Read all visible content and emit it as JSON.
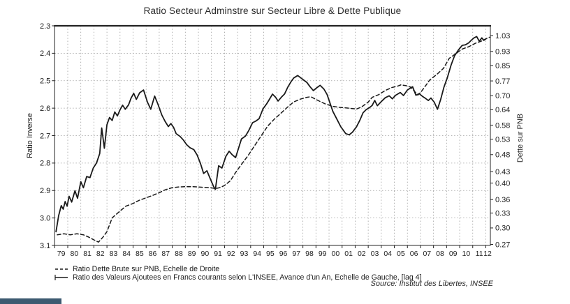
{
  "chart": {
    "title": "Ratio Secteur Adminstre sur Secteur Libre & Dette Publique",
    "left_axis_label": "Ratio Inverse",
    "right_axis_label": "Dette sur PNB",
    "legend": [
      {
        "style": "dashed",
        "label": "Ratio Dette Brute sur PNB, Echelle de Droite"
      },
      {
        "style": "solid",
        "label": "Ratio des Valeurs Ajoutees en Francs courants selon L'INSEE, Avance d'un An, Echelle de Gauche, [lag 4]"
      }
    ],
    "source": "Source: Institut des Libertes, INSEE",
    "colors": {
      "line": "#1a1a1a",
      "grid": "#9b9b9b",
      "frame": "#3a3a3a",
      "text": "#1d1d1d"
    }
  },
  "chart_data": {
    "type": "line",
    "title": "Ratio Secteur Adminstre sur Secteur Libre & Dette Publique",
    "x_range": [
      1979.0,
      2012.35
    ],
    "x_tick_labels": [
      "79",
      "80",
      "81",
      "82",
      "83",
      "84",
      "85",
      "86",
      "87",
      "88",
      "89",
      "90",
      "91",
      "92",
      "93",
      "94",
      "95",
      "96",
      "97",
      "98",
      "99",
      "00",
      "01",
      "02",
      "03",
      "04",
      "05",
      "06",
      "07",
      "08",
      "09",
      "10",
      "11",
      "12"
    ],
    "left_axis": {
      "label": "Ratio Inverse",
      "min": 2.3,
      "max": 3.1,
      "inverted": true,
      "scale": "linear",
      "ticks": [
        "2.3",
        "2.4",
        "2.5",
        "2.6",
        "2.7",
        "2.8",
        "2.9",
        "3.0",
        "3.1"
      ]
    },
    "right_axis": {
      "label": "Dette sur PNB",
      "scale": "log",
      "bottom": 0.27,
      "ticks": [
        "1.03",
        "0.93",
        "0.85",
        "0.77",
        "0.70",
        "0.64",
        "0.58",
        "0.53",
        "0.48",
        "0.43",
        "0.40",
        "0.36",
        "0.33",
        "0.30",
        "0.27"
      ]
    },
    "grid": true,
    "legend_position": "bottom-left",
    "series": [
      {
        "name": "Ratio Dette Brute sur PNB, Echelle de Droite",
        "axis": "right",
        "style": "dashed",
        "points": [
          [
            1979.2,
            0.287
          ],
          [
            1979.7,
            0.289
          ],
          [
            1980.2,
            0.287
          ],
          [
            1980.7,
            0.289
          ],
          [
            1981.2,
            0.287
          ],
          [
            1981.6,
            0.283
          ],
          [
            1982.0,
            0.278
          ],
          [
            1982.35,
            0.274
          ],
          [
            1982.7,
            0.283
          ],
          [
            1983.0,
            0.293
          ],
          [
            1983.4,
            0.32
          ],
          [
            1983.9,
            0.332
          ],
          [
            1984.45,
            0.345
          ],
          [
            1985.0,
            0.351
          ],
          [
            1985.45,
            0.358
          ],
          [
            1986.0,
            0.364
          ],
          [
            1986.45,
            0.369
          ],
          [
            1987.0,
            0.376
          ],
          [
            1987.45,
            0.383
          ],
          [
            1987.95,
            0.388
          ],
          [
            1988.45,
            0.39
          ],
          [
            1989.0,
            0.391
          ],
          [
            1989.5,
            0.391
          ],
          [
            1990.0,
            0.39
          ],
          [
            1990.5,
            0.389
          ],
          [
            1991.0,
            0.388
          ],
          [
            1991.3,
            0.386
          ],
          [
            1991.7,
            0.389
          ],
          [
            1992.0,
            0.394
          ],
          [
            1992.45,
            0.406
          ],
          [
            1992.85,
            0.428
          ],
          [
            1993.3,
            0.451
          ],
          [
            1993.8,
            0.477
          ],
          [
            1994.3,
            0.508
          ],
          [
            1994.8,
            0.541
          ],
          [
            1995.3,
            0.576
          ],
          [
            1995.8,
            0.602
          ],
          [
            1996.3,
            0.625
          ],
          [
            1996.8,
            0.65
          ],
          [
            1997.3,
            0.673
          ],
          [
            1997.8,
            0.685
          ],
          [
            1998.3,
            0.693
          ],
          [
            1998.6,
            0.696
          ],
          [
            1999.2,
            0.678
          ],
          [
            1999.7,
            0.665
          ],
          [
            2000.3,
            0.654
          ],
          [
            2000.8,
            0.65
          ],
          [
            2001.3,
            0.648
          ],
          [
            2001.8,
            0.645
          ],
          [
            2002.1,
            0.643
          ],
          [
            2002.5,
            0.652
          ],
          [
            2003.0,
            0.672
          ],
          [
            2003.3,
            0.693
          ],
          [
            2003.8,
            0.705
          ],
          [
            2004.3,
            0.724
          ],
          [
            2004.8,
            0.738
          ],
          [
            2005.3,
            0.746
          ],
          [
            2005.5,
            0.751
          ],
          [
            2005.9,
            0.747
          ],
          [
            2006.26,
            0.74
          ],
          [
            2006.8,
            0.703
          ],
          [
            2007.05,
            0.718
          ],
          [
            2007.45,
            0.752
          ],
          [
            2007.7,
            0.774
          ],
          [
            2008.25,
            0.803
          ],
          [
            2008.75,
            0.834
          ],
          [
            2009.2,
            0.89
          ],
          [
            2009.7,
            0.917
          ],
          [
            2010.2,
            0.945
          ],
          [
            2010.7,
            0.959
          ],
          [
            2011.2,
            0.98
          ],
          [
            2011.7,
            0.995
          ],
          [
            2012.2,
            1.017
          ],
          [
            2012.35,
            1.02
          ]
        ]
      },
      {
        "name": "Ratio des Valeurs Ajoutees en Francs courants selon L'INSEE, Avance d'un An, Echelle de Gauche, [lag 4]",
        "axis": "left",
        "style": "solid",
        "points": [
          [
            1979.1,
            3.05
          ],
          [
            1979.3,
            2.992
          ],
          [
            1979.5,
            2.955
          ],
          [
            1979.65,
            2.968
          ],
          [
            1979.8,
            2.94
          ],
          [
            1979.95,
            2.957
          ],
          [
            1980.1,
            2.921
          ],
          [
            1980.3,
            2.942
          ],
          [
            1980.55,
            2.901
          ],
          [
            1980.75,
            2.928
          ],
          [
            1981.0,
            2.868
          ],
          [
            1981.2,
            2.89
          ],
          [
            1981.45,
            2.849
          ],
          [
            1981.7,
            2.853
          ],
          [
            1981.95,
            2.818
          ],
          [
            1982.2,
            2.8
          ],
          [
            1982.45,
            2.765
          ],
          [
            1982.6,
            2.672
          ],
          [
            1982.8,
            2.746
          ],
          [
            1983.0,
            2.66
          ],
          [
            1983.2,
            2.634
          ],
          [
            1983.4,
            2.645
          ],
          [
            1983.6,
            2.614
          ],
          [
            1983.8,
            2.628
          ],
          [
            1984.0,
            2.606
          ],
          [
            1984.2,
            2.589
          ],
          [
            1984.4,
            2.604
          ],
          [
            1984.65,
            2.588
          ],
          [
            1984.85,
            2.563
          ],
          [
            1985.05,
            2.546
          ],
          [
            1985.25,
            2.568
          ],
          [
            1985.5,
            2.544
          ],
          [
            1985.8,
            2.534
          ],
          [
            1986.1,
            2.578
          ],
          [
            1986.35,
            2.604
          ],
          [
            1986.65,
            2.556
          ],
          [
            1986.9,
            2.585
          ],
          [
            1987.2,
            2.625
          ],
          [
            1987.45,
            2.648
          ],
          [
            1987.7,
            2.667
          ],
          [
            1987.9,
            2.656
          ],
          [
            1988.1,
            2.67
          ],
          [
            1988.3,
            2.693
          ],
          [
            1988.6,
            2.703
          ],
          [
            1988.85,
            2.716
          ],
          [
            1989.1,
            2.733
          ],
          [
            1989.35,
            2.744
          ],
          [
            1989.65,
            2.751
          ],
          [
            1989.9,
            2.77
          ],
          [
            1990.15,
            2.8
          ],
          [
            1990.4,
            2.838
          ],
          [
            1990.65,
            2.828
          ],
          [
            1990.9,
            2.856
          ],
          [
            1991.15,
            2.884
          ],
          [
            1991.3,
            2.896
          ],
          [
            1991.55,
            2.81
          ],
          [
            1991.8,
            2.818
          ],
          [
            1992.1,
            2.776
          ],
          [
            1992.35,
            2.757
          ],
          [
            1992.6,
            2.77
          ],
          [
            1992.85,
            2.78
          ],
          [
            1993.1,
            2.742
          ],
          [
            1993.3,
            2.712
          ],
          [
            1993.6,
            2.702
          ],
          [
            1993.85,
            2.682
          ],
          [
            1994.15,
            2.653
          ],
          [
            1994.4,
            2.647
          ],
          [
            1994.65,
            2.638
          ],
          [
            1994.95,
            2.602
          ],
          [
            1995.2,
            2.586
          ],
          [
            1995.45,
            2.567
          ],
          [
            1995.67,
            2.549
          ],
          [
            1995.9,
            2.56
          ],
          [
            1996.1,
            2.574
          ],
          [
            1996.35,
            2.56
          ],
          [
            1996.6,
            2.548
          ],
          [
            1996.85,
            2.523
          ],
          [
            1997.1,
            2.503
          ],
          [
            1997.3,
            2.49
          ],
          [
            1997.6,
            2.481
          ],
          [
            1997.85,
            2.49
          ],
          [
            1998.1,
            2.499
          ],
          [
            1998.3,
            2.506
          ],
          [
            1998.55,
            2.522
          ],
          [
            1998.8,
            2.536
          ],
          [
            1999.05,
            2.526
          ],
          [
            1999.32,
            2.517
          ],
          [
            1999.6,
            2.53
          ],
          [
            1999.85,
            2.55
          ],
          [
            2000.1,
            2.585
          ],
          [
            2000.3,
            2.612
          ],
          [
            2000.6,
            2.64
          ],
          [
            2000.9,
            2.668
          ],
          [
            2001.28,
            2.693
          ],
          [
            2001.55,
            2.697
          ],
          [
            2001.8,
            2.687
          ],
          [
            2002.1,
            2.668
          ],
          [
            2002.35,
            2.645
          ],
          [
            2002.6,
            2.617
          ],
          [
            2002.85,
            2.605
          ],
          [
            2003.1,
            2.598
          ],
          [
            2003.3,
            2.59
          ],
          [
            2003.5,
            2.572
          ],
          [
            2003.7,
            2.591
          ],
          [
            2004.0,
            2.576
          ],
          [
            2004.3,
            2.562
          ],
          [
            2004.6,
            2.555
          ],
          [
            2004.85,
            2.566
          ],
          [
            2005.1,
            2.553
          ],
          [
            2005.45,
            2.543
          ],
          [
            2005.7,
            2.554
          ],
          [
            2006.0,
            2.534
          ],
          [
            2006.4,
            2.522
          ],
          [
            2006.65,
            2.553
          ],
          [
            2006.9,
            2.547
          ],
          [
            2007.15,
            2.557
          ],
          [
            2007.4,
            2.565
          ],
          [
            2007.6,
            2.572
          ],
          [
            2007.8,
            2.563
          ],
          [
            2008.05,
            2.578
          ],
          [
            2008.3,
            2.604
          ],
          [
            2008.55,
            2.568
          ],
          [
            2008.8,
            2.523
          ],
          [
            2009.05,
            2.49
          ],
          [
            2009.35,
            2.442
          ],
          [
            2009.6,
            2.41
          ],
          [
            2009.9,
            2.388
          ],
          [
            2010.2,
            2.371
          ],
          [
            2010.45,
            2.369
          ],
          [
            2010.7,
            2.362
          ],
          [
            2010.9,
            2.352
          ],
          [
            2011.1,
            2.344
          ],
          [
            2011.3,
            2.339
          ],
          [
            2011.5,
            2.356
          ],
          [
            2011.7,
            2.344
          ],
          [
            2011.85,
            2.353
          ],
          [
            2012.0,
            2.348
          ]
        ]
      }
    ]
  }
}
